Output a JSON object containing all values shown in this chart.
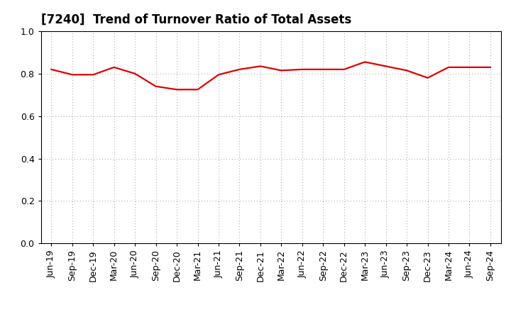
{
  "title": "[7240]  Trend of Turnover Ratio of Total Assets",
  "labels": [
    "Jun-19",
    "Sep-19",
    "Dec-19",
    "Mar-20",
    "Jun-20",
    "Sep-20",
    "Dec-20",
    "Mar-21",
    "Jun-21",
    "Sep-21",
    "Dec-21",
    "Mar-22",
    "Jun-22",
    "Sep-22",
    "Dec-22",
    "Mar-23",
    "Jun-23",
    "Sep-23",
    "Dec-23",
    "Mar-24",
    "Jun-24",
    "Sep-24"
  ],
  "values": [
    0.82,
    0.795,
    0.795,
    0.83,
    0.8,
    0.74,
    0.725,
    0.725,
    0.795,
    0.82,
    0.835,
    0.815,
    0.82,
    0.82,
    0.82,
    0.855,
    0.835,
    0.815,
    0.78,
    0.83,
    0.83,
    0.83
  ],
  "line_color": "#e00000",
  "line_width": 1.6,
  "ylim": [
    0.0,
    1.0
  ],
  "yticks": [
    0.0,
    0.2,
    0.4,
    0.6,
    0.8,
    1.0
  ],
  "background_color": "#ffffff",
  "grid_color": "#999999",
  "title_fontsize": 12,
  "tick_fontsize": 9,
  "fill_area": false
}
